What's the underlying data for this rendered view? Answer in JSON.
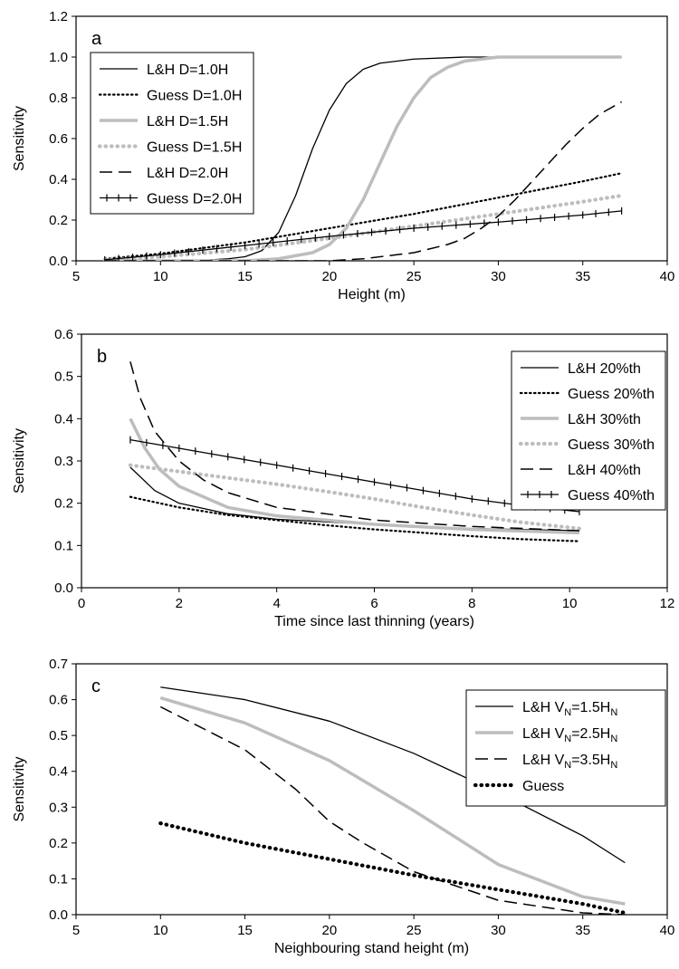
{
  "chart_data": [
    {
      "type": "line",
      "panel_label": "a",
      "xlabel": "Height (m)",
      "ylabel": "Sensitivity",
      "xlim": [
        5,
        40
      ],
      "ylim": [
        0,
        1.2
      ],
      "xticks": [
        5,
        10,
        15,
        20,
        25,
        30,
        35,
        40
      ],
      "yticks": [
        0.0,
        0.2,
        0.4,
        0.6,
        0.8,
        1.0,
        1.2
      ],
      "yfmt": 1,
      "legend_position": "top-left",
      "series": [
        {
          "name": "L&H D=1.0H",
          "style": "solid-thin",
          "color": "#000000",
          "points": [
            [
              6.7,
              0.0
            ],
            [
              12,
              0.0
            ],
            [
              14,
              0.01
            ],
            [
              15,
              0.02
            ],
            [
              16,
              0.05
            ],
            [
              17,
              0.14
            ],
            [
              18,
              0.32
            ],
            [
              19,
              0.55
            ],
            [
              20,
              0.74
            ],
            [
              21,
              0.87
            ],
            [
              22,
              0.94
            ],
            [
              23,
              0.97
            ],
            [
              25,
              0.99
            ],
            [
              28,
              1.0
            ],
            [
              30,
              1.0
            ],
            [
              37.3,
              1.0
            ]
          ]
        },
        {
          "name": "Guess D=1.0H",
          "style": "dotted",
          "color": "#000000",
          "points": [
            [
              6.7,
              0.01
            ],
            [
              10,
              0.035
            ],
            [
              15,
              0.09
            ],
            [
              20,
              0.16
            ],
            [
              25,
              0.23
            ],
            [
              30,
              0.31
            ],
            [
              35,
              0.39
            ],
            [
              37.3,
              0.43
            ]
          ]
        },
        {
          "name": "L&H D=1.5H",
          "style": "solid-thick",
          "color": "#bdbdbd",
          "points": [
            [
              6.7,
              0.0
            ],
            [
              15,
              0.0
            ],
            [
              17,
              0.01
            ],
            [
              19,
              0.04
            ],
            [
              20,
              0.08
            ],
            [
              21,
              0.16
            ],
            [
              22,
              0.3
            ],
            [
              23,
              0.48
            ],
            [
              24,
              0.66
            ],
            [
              25,
              0.8
            ],
            [
              26,
              0.9
            ],
            [
              27,
              0.95
            ],
            [
              28,
              0.98
            ],
            [
              30,
              1.0
            ],
            [
              37.3,
              1.0
            ]
          ]
        },
        {
          "name": "Guess D=1.5H",
          "style": "dotted-thick",
          "color": "#bdbdbd",
          "points": [
            [
              6.7,
              0.005
            ],
            [
              10,
              0.02
            ],
            [
              15,
              0.055
            ],
            [
              20,
              0.11
            ],
            [
              25,
              0.17
            ],
            [
              30,
              0.23
            ],
            [
              35,
              0.29
            ],
            [
              37.3,
              0.32
            ]
          ]
        },
        {
          "name": "L&H D=2.0H",
          "style": "dashed",
          "color": "#000000",
          "points": [
            [
              6.7,
              0.0
            ],
            [
              20,
              0.0
            ],
            [
              22,
              0.01
            ],
            [
              25,
              0.04
            ],
            [
              27,
              0.08
            ],
            [
              28,
              0.11
            ],
            [
              29,
              0.16
            ],
            [
              30,
              0.22
            ],
            [
              31,
              0.3
            ],
            [
              32,
              0.39
            ],
            [
              33,
              0.48
            ],
            [
              34,
              0.57
            ],
            [
              35,
              0.65
            ],
            [
              36,
              0.72
            ],
            [
              37.3,
              0.78
            ]
          ]
        },
        {
          "name": "Guess D=2.0H",
          "style": "plus",
          "color": "#000000",
          "points": [
            [
              6.7,
              0.005
            ],
            [
              10,
              0.03
            ],
            [
              15,
              0.075
            ],
            [
              20,
              0.12
            ],
            [
              25,
              0.16
            ],
            [
              30,
              0.19
            ],
            [
              35,
              0.225
            ],
            [
              37.3,
              0.245
            ]
          ]
        }
      ]
    },
    {
      "type": "line",
      "panel_label": "b",
      "xlabel": "Time since last thinning (years)",
      "ylabel": "Sensitivity",
      "xlim": [
        0,
        12
      ],
      "ylim": [
        0,
        0.6
      ],
      "xticks": [
        0,
        2,
        4,
        6,
        8,
        10,
        12
      ],
      "yticks": [
        0.0,
        0.1,
        0.2,
        0.3,
        0.4,
        0.5,
        0.6
      ],
      "yfmt": 1,
      "legend_position": "top-right",
      "series": [
        {
          "name": "L&H 20%th",
          "style": "solid-thin",
          "color": "#000000",
          "points": [
            [
              1,
              0.285
            ],
            [
              1.5,
              0.23
            ],
            [
              2,
              0.2
            ],
            [
              3,
              0.175
            ],
            [
              4,
              0.162
            ],
            [
              6,
              0.15
            ],
            [
              8,
              0.14
            ],
            [
              10.2,
              0.135
            ]
          ]
        },
        {
          "name": "Guess 20%th",
          "style": "dotted",
          "color": "#000000",
          "points": [
            [
              1,
              0.215
            ],
            [
              2,
              0.19
            ],
            [
              3,
              0.172
            ],
            [
              4,
              0.16
            ],
            [
              5,
              0.148
            ],
            [
              6,
              0.138
            ],
            [
              7,
              0.13
            ],
            [
              8,
              0.122
            ],
            [
              9,
              0.115
            ],
            [
              10.2,
              0.11
            ]
          ]
        },
        {
          "name": "L&H 30%th",
          "style": "solid-thick",
          "color": "#bdbdbd",
          "points": [
            [
              1,
              0.4
            ],
            [
              1.3,
              0.33
            ],
            [
              1.6,
              0.28
            ],
            [
              2,
              0.24
            ],
            [
              3,
              0.19
            ],
            [
              4,
              0.17
            ],
            [
              6,
              0.15
            ],
            [
              8,
              0.138
            ],
            [
              10.2,
              0.13
            ]
          ]
        },
        {
          "name": "Guess 30%th",
          "style": "dotted-thick",
          "color": "#bdbdbd",
          "points": [
            [
              1,
              0.29
            ],
            [
              2,
              0.275
            ],
            [
              3,
              0.26
            ],
            [
              4,
              0.245
            ],
            [
              5,
              0.228
            ],
            [
              6,
              0.21
            ],
            [
              7,
              0.19
            ],
            [
              8,
              0.172
            ],
            [
              9,
              0.155
            ],
            [
              10.2,
              0.14
            ]
          ]
        },
        {
          "name": "L&H 40%th",
          "style": "dashed",
          "color": "#000000",
          "points": [
            [
              1,
              0.535
            ],
            [
              1.2,
              0.45
            ],
            [
              1.5,
              0.37
            ],
            [
              2,
              0.3
            ],
            [
              2.5,
              0.255
            ],
            [
              3,
              0.225
            ],
            [
              4,
              0.19
            ],
            [
              6,
              0.16
            ],
            [
              8,
              0.145
            ],
            [
              10.2,
              0.135
            ]
          ]
        },
        {
          "name": "Guess 40%th",
          "style": "plus",
          "color": "#000000",
          "points": [
            [
              1,
              0.35
            ],
            [
              2,
              0.33
            ],
            [
              3,
              0.31
            ],
            [
              4,
              0.29
            ],
            [
              5,
              0.27
            ],
            [
              6,
              0.25
            ],
            [
              7,
              0.23
            ],
            [
              8,
              0.21
            ],
            [
              9,
              0.195
            ],
            [
              10.2,
              0.18
            ]
          ]
        }
      ]
    },
    {
      "type": "line",
      "panel_label": "c",
      "xlabel": "Neighbouring stand height (m)",
      "ylabel": "Sensitivity",
      "xlim": [
        5,
        40
      ],
      "ylim": [
        0,
        0.7
      ],
      "xticks": [
        5,
        10,
        15,
        20,
        25,
        30,
        35,
        40
      ],
      "yticks": [
        0.0,
        0.1,
        0.2,
        0.3,
        0.4,
        0.5,
        0.6,
        0.7
      ],
      "yfmt": 1,
      "legend_position": "top-right",
      "series": [
        {
          "name": "L&H V",
          "name_sub": "N",
          "name_mid": "=1.5H",
          "name_sub2": "N",
          "style": "solid-thin",
          "color": "#000000",
          "points": [
            [
              10,
              0.635
            ],
            [
              15,
              0.6
            ],
            [
              20,
              0.54
            ],
            [
              25,
              0.45
            ],
            [
              30,
              0.34
            ],
            [
              35,
              0.22
            ],
            [
              37.5,
              0.145
            ]
          ]
        },
        {
          "name": "L&H V",
          "name_sub": "N",
          "name_mid": "=2.5H",
          "name_sub2": "N",
          "style": "solid-thick",
          "color": "#bdbdbd",
          "points": [
            [
              10,
              0.605
            ],
            [
              15,
              0.535
            ],
            [
              20,
              0.43
            ],
            [
              25,
              0.29
            ],
            [
              30,
              0.14
            ],
            [
              35,
              0.05
            ],
            [
              37.5,
              0.03
            ]
          ]
        },
        {
          "name": "L&H V",
          "name_sub": "N",
          "name_mid": "=3.5H",
          "name_sub2": "N",
          "style": "dashed",
          "color": "#000000",
          "points": [
            [
              10,
              0.58
            ],
            [
              15,
              0.46
            ],
            [
              18,
              0.35
            ],
            [
              20,
              0.26
            ],
            [
              22,
              0.2
            ],
            [
              25,
              0.12
            ],
            [
              30,
              0.04
            ],
            [
              35,
              0.005
            ],
            [
              37.5,
              0.0
            ]
          ]
        },
        {
          "name": "Guess",
          "style": "dotted-thick",
          "color": "#000000",
          "points": [
            [
              10,
              0.255
            ],
            [
              15,
              0.2
            ],
            [
              20,
              0.155
            ],
            [
              25,
              0.11
            ],
            [
              30,
              0.07
            ],
            [
              35,
              0.03
            ],
            [
              37.5,
              0.005
            ]
          ]
        }
      ]
    }
  ]
}
